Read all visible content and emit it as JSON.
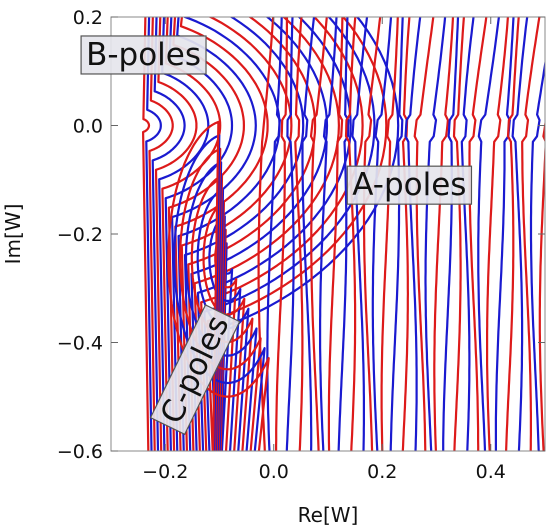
{
  "chart_data": {
    "type": "line",
    "title": "",
    "xlabel": "Re[W]",
    "ylabel": "Im[W]",
    "xlim": [
      -0.3,
      0.5
    ],
    "ylim": [
      -0.6,
      0.2
    ],
    "xticks": [
      -0.2,
      0.0,
      0.2,
      0.4
    ],
    "xtick_labels": [
      "−0.2",
      "0.0",
      "0.2",
      "0.4"
    ],
    "yticks": [
      0.2,
      0.0,
      -0.2,
      -0.4,
      -0.6
    ],
    "ytick_labels": [
      "0.2",
      "0.0",
      "−0.2",
      "−0.4",
      "−0.6"
    ],
    "grid": false,
    "legend": "none",
    "colors": {
      "series_a": "#dd1a1a",
      "series_b": "#1a1ad0",
      "box_fill": "#e5e5ec",
      "box_stroke": "#555555"
    },
    "pole_points": {
      "B": [
        -0.245,
        0.0
      ],
      "C": [
        -0.085,
        -0.245
      ]
    },
    "regions": [
      {
        "text": "B-poles",
        "x": -0.24,
        "y": 0.13,
        "rotation": 0
      },
      {
        "text": "A-poles",
        "x": 0.25,
        "y": -0.11,
        "rotation": 0
      },
      {
        "text": "C-poles",
        "x": -0.145,
        "y": -0.45,
        "rotation": -64
      }
    ],
    "contour_families": [
      {
        "name": "",
        "color": "#dd1a1a",
        "kind": "radial-and-vertical"
      },
      {
        "name": "",
        "color": "#1a1ad0",
        "kind": "radial-and-vertical"
      }
    ]
  }
}
